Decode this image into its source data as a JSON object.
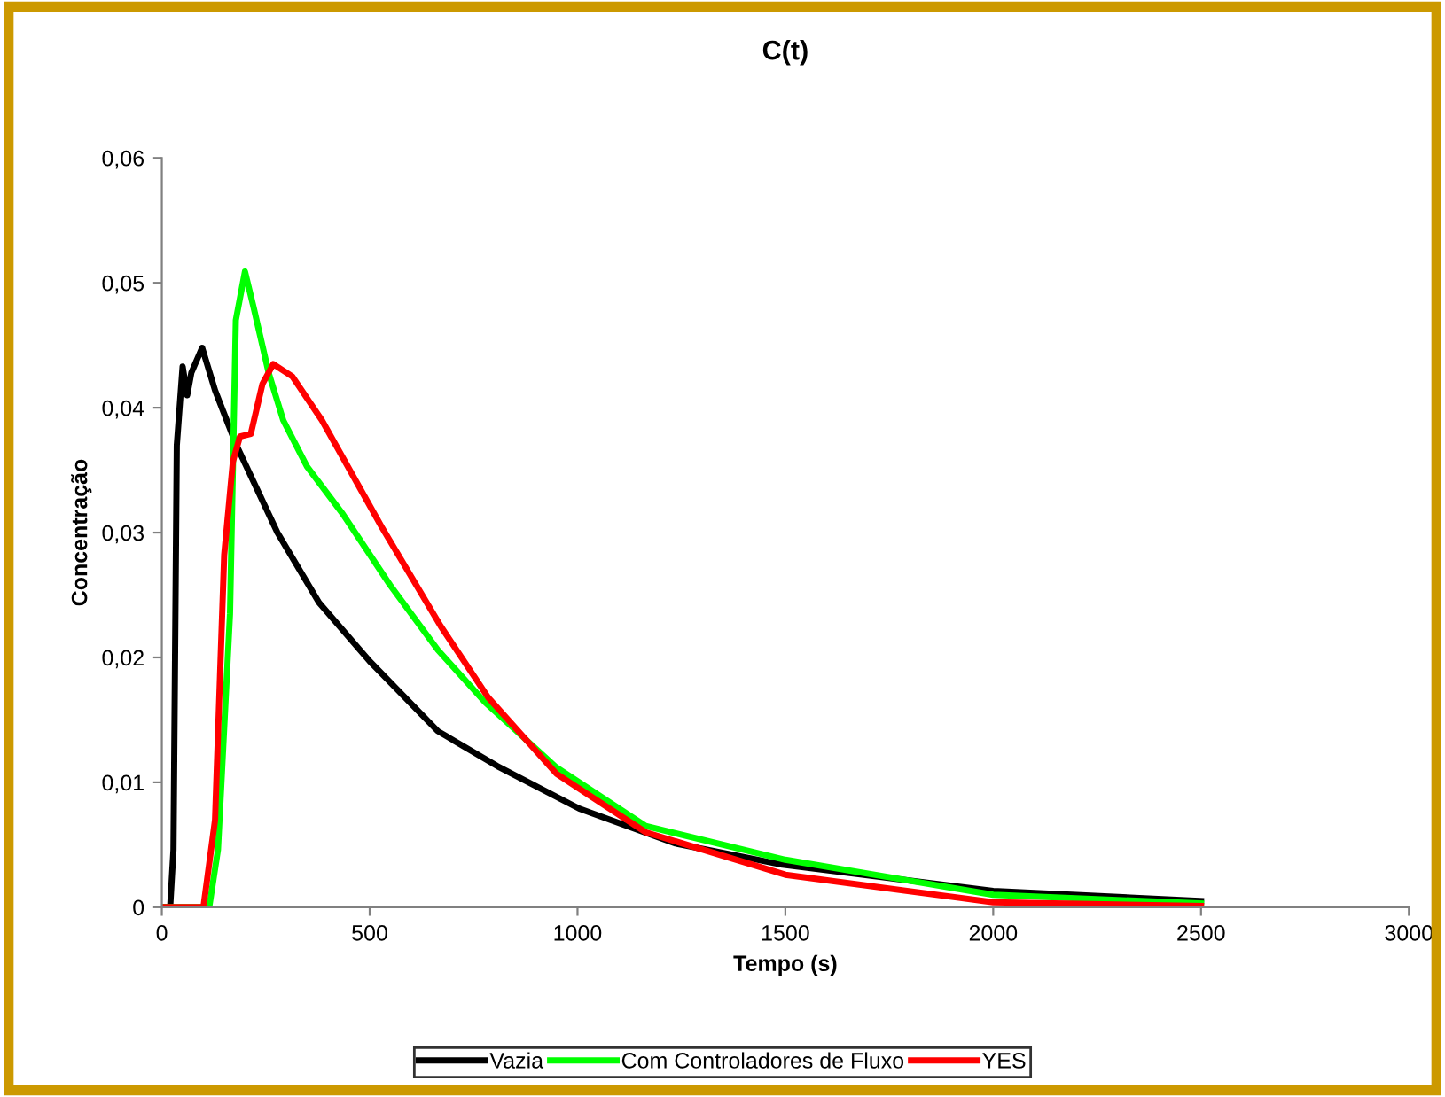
{
  "chart_data": {
    "type": "line",
    "title": "C(t)",
    "xlabel": "Tempo (s)",
    "ylabel": "Concentração",
    "xlim": [
      0,
      3000
    ],
    "xticks": [
      0,
      500,
      1000,
      1500,
      2000,
      2500,
      3000
    ],
    "ylim": [
      0,
      0.06
    ],
    "yticks": [
      {
        "value": 0,
        "label": "0"
      },
      {
        "value": 0.01,
        "label": "0,01"
      },
      {
        "value": 0.02,
        "label": "0,02"
      },
      {
        "value": 0.03,
        "label": "0,03"
      },
      {
        "value": 0.04,
        "label": "0,04"
      },
      {
        "value": 0.05,
        "label": "0,05"
      },
      {
        "value": 0.06,
        "label": "0,06"
      }
    ],
    "grid": false,
    "legend": "bottom",
    "marker": "none",
    "line_style": "solid",
    "series": [
      {
        "name": "Vazia",
        "color": "#000000",
        "x": [
          0,
          20,
          28,
          36,
          50,
          61,
          71,
          97,
          128,
          178,
          278,
          378,
          500,
          664,
          807,
          1004,
          1236,
          1493,
          2000,
          2500
        ],
        "values": [
          0,
          0,
          0.0046,
          0.037,
          0.0433,
          0.041,
          0.0428,
          0.0448,
          0.0414,
          0.0371,
          0.03,
          0.0244,
          0.0197,
          0.0141,
          0.0113,
          0.0079,
          0.0051,
          0.0034,
          0.0013,
          0.0005
        ]
      },
      {
        "name": "Com Controladores de Fluxo",
        "color": "#00ff00",
        "x": [
          0,
          114,
          135,
          164,
          178,
          200,
          221,
          257,
          292,
          349,
          435,
          549,
          664,
          778,
          949,
          1164,
          1500,
          2000,
          2500
        ],
        "values": [
          0,
          0,
          0.0046,
          0.0235,
          0.047,
          0.0509,
          0.048,
          0.0428,
          0.039,
          0.0353,
          0.0315,
          0.0258,
          0.0206,
          0.0164,
          0.0112,
          0.0065,
          0.0038,
          0.001,
          0.0003
        ]
      },
      {
        "name": "YES",
        "color": "#ff0000",
        "x": [
          0,
          100,
          128,
          150,
          171,
          188,
          214,
          242,
          268,
          314,
          385,
          528,
          671,
          785,
          949,
          1164,
          1500,
          2000,
          2500
        ],
        "values": [
          0,
          0,
          0.007,
          0.0282,
          0.0357,
          0.0377,
          0.0379,
          0.0419,
          0.0435,
          0.0425,
          0.039,
          0.0305,
          0.0225,
          0.0168,
          0.0107,
          0.006,
          0.0026,
          0.0004,
          0.0001
        ]
      }
    ]
  }
}
